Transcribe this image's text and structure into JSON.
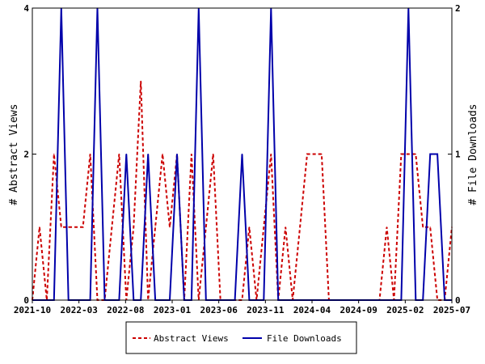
{
  "chart_data": {
    "type": "line",
    "x_tick_labels": [
      "2021-10",
      "2022-03",
      "2022-08",
      "2023-01",
      "2023-06",
      "2023-11",
      "2024-04",
      "2024-09",
      "2025-02",
      "2025-07"
    ],
    "y_left": {
      "label": "# Abstract Views",
      "ticks": [
        "0",
        "2",
        "4"
      ],
      "lim": [
        0,
        4
      ]
    },
    "y_right": {
      "label": "# File Downloads",
      "ticks": [
        "0",
        "1",
        "2"
      ],
      "lim": [
        0,
        2
      ]
    },
    "series": [
      {
        "name": "Abstract Views",
        "color": "#cc0000",
        "axis": "left",
        "style": "dashed",
        "values": [
          0,
          1,
          0,
          2,
          1,
          1,
          1,
          1,
          2,
          0,
          0,
          1,
          2,
          0,
          1,
          3,
          0,
          1,
          2,
          1,
          2,
          0,
          2,
          0,
          1,
          2,
          0,
          0,
          0,
          0,
          1,
          0,
          1,
          2,
          0,
          1,
          0,
          1,
          2,
          2,
          2,
          0,
          0,
          0,
          0,
          0,
          0,
          0,
          0,
          1,
          0,
          2,
          2,
          2,
          1,
          1,
          0,
          0,
          1
        ]
      },
      {
        "name": "File Downloads",
        "color": "#0000aa",
        "axis": "right",
        "style": "solid",
        "values": [
          0,
          0,
          0,
          0,
          2,
          0,
          0,
          0,
          0,
          2,
          0,
          0,
          0,
          1,
          0,
          0,
          1,
          0,
          0,
          0,
          1,
          0,
          0,
          2,
          0,
          0,
          0,
          0,
          0,
          1,
          0,
          0,
          0,
          2,
          0,
          0,
          0,
          0,
          0,
          0,
          0,
          0,
          0,
          0,
          0,
          0,
          0,
          0,
          0,
          0,
          0,
          0,
          2,
          0,
          0,
          1,
          1,
          0,
          0
        ]
      }
    ]
  }
}
